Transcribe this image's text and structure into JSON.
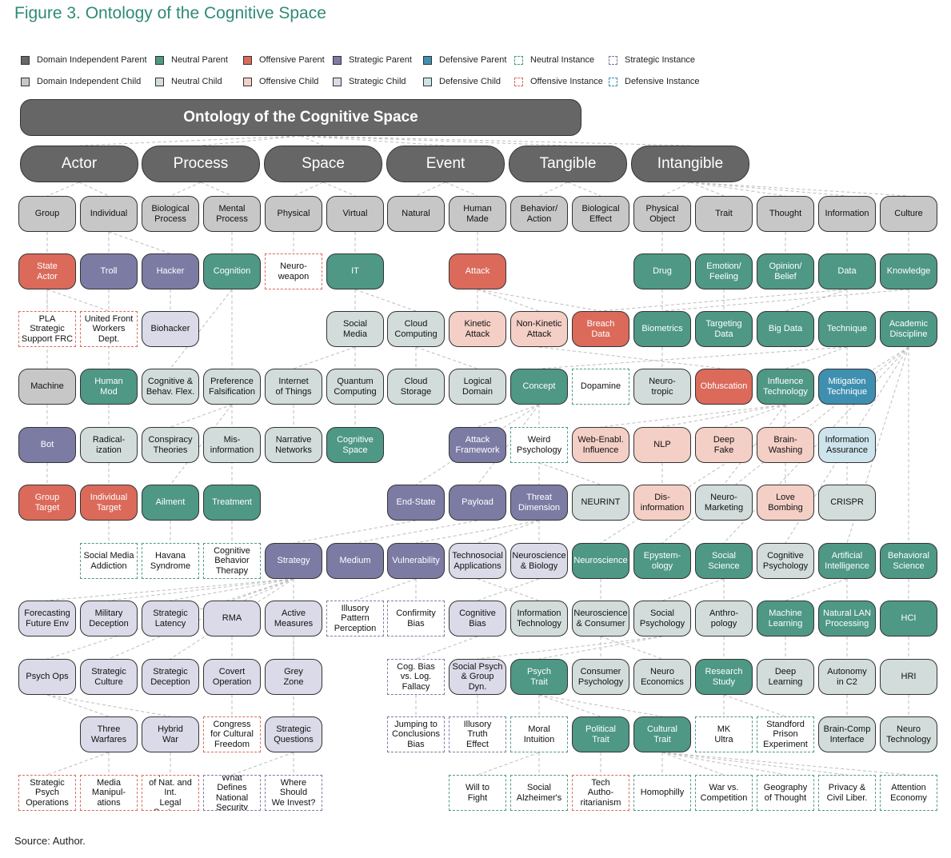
{
  "figure": {
    "title": "Figure 3. Ontology of the Cognitive Space",
    "source": "Source: Author."
  },
  "colors": {
    "dp": "#666666",
    "dc": "#c7c7c7",
    "np": "#4e9885",
    "nc": "#d2dddb",
    "op": "#db6a5a",
    "oc": "#f4cfc6",
    "sp": "#7c7ba4",
    "sc": "#dadae8",
    "fp": "#3f8fb0",
    "fc": "#cde4ec",
    "ni": "#4e9885",
    "oi": "#db6a5a",
    "si": "#7c7ba4",
    "fi": "#3f8fb0",
    "edge": "#bdbdbd",
    "title": "#2f8a78"
  },
  "legend": [
    {
      "label": "Domain Independent Parent",
      "kind": "dp"
    },
    {
      "label": "Neutral Parent",
      "kind": "np"
    },
    {
      "label": "Offensive Parent",
      "kind": "op"
    },
    {
      "label": "Strategic Parent",
      "kind": "sp"
    },
    {
      "label": "Defensive Parent",
      "kind": "fp"
    },
    {
      "label": "Neutral Instance",
      "kind": "ni"
    },
    {
      "label": "Strategic Instance",
      "kind": "si"
    },
    {
      "label": "Domain Independent Child",
      "kind": "dc"
    },
    {
      "label": "Neutral Child",
      "kind": "nc"
    },
    {
      "label": "Offensive Child",
      "kind": "oc"
    },
    {
      "label": "Strategic Child",
      "kind": "sc"
    },
    {
      "label": "Defensive Child",
      "kind": "fc"
    },
    {
      "label": "Offensive Instance",
      "kind": "oi"
    },
    {
      "label": "Defensive Instance",
      "kind": "fi"
    }
  ],
  "root": {
    "label": "Ontology of the Cognitive Space",
    "kind": "dp"
  },
  "categories": [
    {
      "label": "Actor",
      "kind": "dp"
    },
    {
      "label": "Process",
      "kind": "dp"
    },
    {
      "label": "Space",
      "kind": "dp"
    },
    {
      "label": "Event",
      "kind": "dp"
    },
    {
      "label": "Tangible",
      "kind": "dp"
    },
    {
      "label": "Intangible",
      "kind": "dp"
    }
  ],
  "grid": [
    [
      {
        "label": "Group",
        "kind": "dc"
      },
      {
        "label": "Individual",
        "kind": "dc"
      },
      {
        "label": "Biological\nProcess",
        "kind": "dc"
      },
      {
        "label": "Mental\nProcess",
        "kind": "dc"
      },
      {
        "label": "Physical",
        "kind": "dc"
      },
      {
        "label": "Virtual",
        "kind": "dc"
      },
      {
        "label": "Natural",
        "kind": "dc"
      },
      {
        "label": "Human\nMade",
        "kind": "dc"
      },
      {
        "label": "Behavior/\nAction",
        "kind": "dc"
      },
      {
        "label": "Biological\nEffect",
        "kind": "dc"
      },
      {
        "label": "Physical\nObject",
        "kind": "dc"
      },
      {
        "label": "Trait",
        "kind": "dc"
      },
      {
        "label": "Thought",
        "kind": "dc"
      },
      {
        "label": "Information",
        "kind": "dc"
      },
      {
        "label": "Culture",
        "kind": "dc"
      }
    ],
    [
      {
        "label": "State\nActor",
        "kind": "op"
      },
      {
        "label": "Troll",
        "kind": "sp"
      },
      {
        "label": "Hacker",
        "kind": "sp"
      },
      {
        "label": "Cognition",
        "kind": "np"
      },
      {
        "label": "Neuro-\nweapon",
        "kind": "oi"
      },
      {
        "label": "IT",
        "kind": "np"
      },
      null,
      {
        "label": "Attack",
        "kind": "op"
      },
      null,
      null,
      {
        "label": "Drug",
        "kind": "np"
      },
      {
        "label": "Emotion/\nFeeling",
        "kind": "np"
      },
      {
        "label": "Opinion/\nBelief",
        "kind": "np"
      },
      {
        "label": "Data",
        "kind": "np"
      },
      {
        "label": "Knowledge",
        "kind": "np"
      }
    ],
    [
      {
        "label": "PLA\nStrategic\nSupport FRC",
        "kind": "oi"
      },
      {
        "label": "United Front\nWorkers\nDept.",
        "kind": "oi"
      },
      {
        "label": "Biohacker",
        "kind": "sc"
      },
      null,
      null,
      {
        "label": "Social\nMedia",
        "kind": "nc"
      },
      {
        "label": "Cloud\nComputing",
        "kind": "nc"
      },
      {
        "label": "Kinetic\nAttack",
        "kind": "oc"
      },
      {
        "label": "Non-Kinetic\nAttack",
        "kind": "oc"
      },
      {
        "label": "Breach\nData",
        "kind": "op"
      },
      {
        "label": "Biometrics",
        "kind": "np"
      },
      {
        "label": "Targeting\nData",
        "kind": "np"
      },
      {
        "label": "Big Data",
        "kind": "np"
      },
      {
        "label": "Technique",
        "kind": "np"
      },
      {
        "label": "Academic\nDiscipline",
        "kind": "np"
      }
    ],
    [
      {
        "label": "Machine",
        "kind": "dc"
      },
      {
        "label": "Human\nMod",
        "kind": "np"
      },
      {
        "label": "Cognitive &\nBehav. Flex.",
        "kind": "nc"
      },
      {
        "label": "Preference\nFalsification",
        "kind": "nc"
      },
      {
        "label": "Internet\nof Things",
        "kind": "nc"
      },
      {
        "label": "Quantum\nComputing",
        "kind": "nc"
      },
      {
        "label": "Cloud\nStorage",
        "kind": "nc"
      },
      {
        "label": "Logical\nDomain",
        "kind": "nc"
      },
      {
        "label": "Concept",
        "kind": "np"
      },
      {
        "label": "Dopamine",
        "kind": "ni"
      },
      {
        "label": "Neuro-\ntropic",
        "kind": "nc"
      },
      {
        "label": "Obfuscation",
        "kind": "op"
      },
      {
        "label": "Influence\nTechnology",
        "kind": "np"
      },
      {
        "label": "Mitigation\nTechnique",
        "kind": "fp"
      },
      null
    ],
    [
      {
        "label": "Bot",
        "kind": "sp"
      },
      {
        "label": "Radical-\nization",
        "kind": "nc"
      },
      {
        "label": "Conspiracy\nTheories",
        "kind": "nc"
      },
      {
        "label": "Mis-\ninformation",
        "kind": "nc"
      },
      {
        "label": "Narrative\nNetworks",
        "kind": "nc"
      },
      {
        "label": "Cognitive\nSpace",
        "kind": "np"
      },
      null,
      {
        "label": "Attack\nFramework",
        "kind": "sp"
      },
      {
        "label": "Weird\nPsychology",
        "kind": "ni"
      },
      {
        "label": "Web-Enabl.\nInfluence",
        "kind": "oc"
      },
      {
        "label": "NLP",
        "kind": "oc"
      },
      {
        "label": "Deep\nFake",
        "kind": "oc"
      },
      {
        "label": "Brain-\nWashing",
        "kind": "oc"
      },
      {
        "label": "Information\nAssurance",
        "kind": "fc"
      },
      null
    ],
    [
      {
        "label": "Group\nTarget",
        "kind": "op"
      },
      {
        "label": "Individual\nTarget",
        "kind": "op"
      },
      {
        "label": "Ailment",
        "kind": "np"
      },
      {
        "label": "Treatment",
        "kind": "np"
      },
      null,
      null,
      {
        "label": "End-State",
        "kind": "sp"
      },
      {
        "label": "Payload",
        "kind": "sp"
      },
      {
        "label": "Threat\nDimension",
        "kind": "sp"
      },
      {
        "label": "NEURINT",
        "kind": "nc"
      },
      {
        "label": "Dis-\ninformation",
        "kind": "oc"
      },
      {
        "label": "Neuro-\nMarketing",
        "kind": "nc"
      },
      {
        "label": "Love\nBombing",
        "kind": "oc"
      },
      {
        "label": "CRISPR",
        "kind": "nc"
      },
      null
    ],
    [
      null,
      {
        "label": "Social Media\nAddiction",
        "kind": "ni"
      },
      {
        "label": "Havana\nSyndrome",
        "kind": "ni"
      },
      {
        "label": "Cognitive\nBehavior\nTherapy",
        "kind": "ni"
      },
      {
        "label": "Strategy",
        "kind": "sp"
      },
      {
        "label": "Medium",
        "kind": "sp"
      },
      {
        "label": "Vulnerability",
        "kind": "sp"
      },
      {
        "label": "Technosocial\nApplications",
        "kind": "sc"
      },
      {
        "label": "Neuroscience\n& Biology",
        "kind": "sc"
      },
      {
        "label": "Neuroscience",
        "kind": "np"
      },
      {
        "label": "Epystem-\nology",
        "kind": "np"
      },
      {
        "label": "Social\nScience",
        "kind": "np"
      },
      {
        "label": "Cognitive\nPsychology",
        "kind": "nc"
      },
      {
        "label": "Artificial\nIntelligence",
        "kind": "np"
      },
      {
        "label": "Behavioral\nScience",
        "kind": "np"
      }
    ],
    [
      {
        "label": "Forecasting\nFuture Env",
        "kind": "sc"
      },
      {
        "label": "Military\nDeception",
        "kind": "sc"
      },
      {
        "label": "Strategic\nLatency",
        "kind": "sc"
      },
      {
        "label": "RMA",
        "kind": "sc"
      },
      {
        "label": "Active\nMeasures",
        "kind": "sc"
      },
      {
        "label": "Illusory\nPattern\nPerception",
        "kind": "si"
      },
      {
        "label": "Confirmity\nBias",
        "kind": "si"
      },
      {
        "label": "Cognitive\nBias",
        "kind": "sc"
      },
      {
        "label": "Information\nTechnology",
        "kind": "nc"
      },
      {
        "label": "Neuroscience\n& Consumer",
        "kind": "nc"
      },
      {
        "label": "Social\nPsychology",
        "kind": "nc"
      },
      {
        "label": "Anthro-\npology",
        "kind": "nc"
      },
      {
        "label": "Machine\nLearning",
        "kind": "np"
      },
      {
        "label": "Natural LAN\nProcessing",
        "kind": "np"
      },
      {
        "label": "HCI",
        "kind": "np"
      }
    ],
    [
      {
        "label": "Psych Ops",
        "kind": "sc"
      },
      {
        "label": "Strategic\nCulture",
        "kind": "sc"
      },
      {
        "label": "Strategic\nDeception",
        "kind": "sc"
      },
      {
        "label": "Covert\nOperation",
        "kind": "sc"
      },
      {
        "label": "Grey\nZone",
        "kind": "sc"
      },
      null,
      {
        "label": "Cog. Bias\nvs. Log.\nFallacy",
        "kind": "si"
      },
      {
        "label": "Social Psych\n& Group Dyn.",
        "kind": "sc"
      },
      {
        "label": "Psych\nTrait",
        "kind": "np"
      },
      {
        "label": "Consumer\nPsychology",
        "kind": "nc"
      },
      {
        "label": "Neuro\nEconomics",
        "kind": "nc"
      },
      {
        "label": "Research\nStudy",
        "kind": "np"
      },
      {
        "label": "Deep\nLearning",
        "kind": "nc"
      },
      {
        "label": "Autonomy\nin C2",
        "kind": "nc"
      },
      {
        "label": "HRI",
        "kind": "nc"
      }
    ],
    [
      null,
      {
        "label": "Three\nWarfares",
        "kind": "sc"
      },
      {
        "label": "Hybrid\nWar",
        "kind": "sc"
      },
      {
        "label": "Congress\nfor Cultural\nFreedom",
        "kind": "oi"
      },
      {
        "label": "Strategic\nQuestions",
        "kind": "sc"
      },
      null,
      {
        "label": "Jumping to\nConclusions\nBias",
        "kind": "si"
      },
      {
        "label": "Illusory\nTruth\nEffect",
        "kind": "si"
      },
      {
        "label": "Moral\nIntuition",
        "kind": "ni"
      },
      {
        "label": "Political\nTrait",
        "kind": "np"
      },
      {
        "label": "Cultural\nTrait",
        "kind": "np"
      },
      {
        "label": "MK\nUltra",
        "kind": "ni"
      },
      {
        "label": "Standford\nPrison\nExperiment",
        "kind": "ni"
      },
      {
        "label": "Brain-Comp\nInterface",
        "kind": "nc"
      },
      {
        "label": "Neuro\nTechnology",
        "kind": "nc"
      }
    ],
    [
      {
        "label": "Strategic\nPsych\nOperations",
        "kind": "oi"
      },
      {
        "label": "Media\nManipul-\nations",
        "kind": "oi"
      },
      {
        "label": "Exploration\nof Nat. and Int.\nLegal Systems",
        "kind": "oi"
      },
      {
        "label": "What Defines\nNational\nSecurity",
        "kind": "si"
      },
      {
        "label": "Where\nShould\nWe Invest?",
        "kind": "si"
      },
      null,
      null,
      {
        "label": "Will to\nFight",
        "kind": "ni"
      },
      {
        "label": "Social\nAlzheimer's",
        "kind": "ni"
      },
      {
        "label": "Tech\nAutho-\nritarianism",
        "kind": "oi"
      },
      {
        "label": "Homophilly",
        "kind": "ni"
      },
      {
        "label": "War vs.\nCompetition",
        "kind": "ni"
      },
      {
        "label": "Geography\nof Thought",
        "kind": "ni"
      },
      {
        "label": "Privacy &\nCivil Liber.",
        "kind": "ni"
      },
      {
        "label": "Attention\nEconomy",
        "kind": "ni"
      }
    ]
  ]
}
